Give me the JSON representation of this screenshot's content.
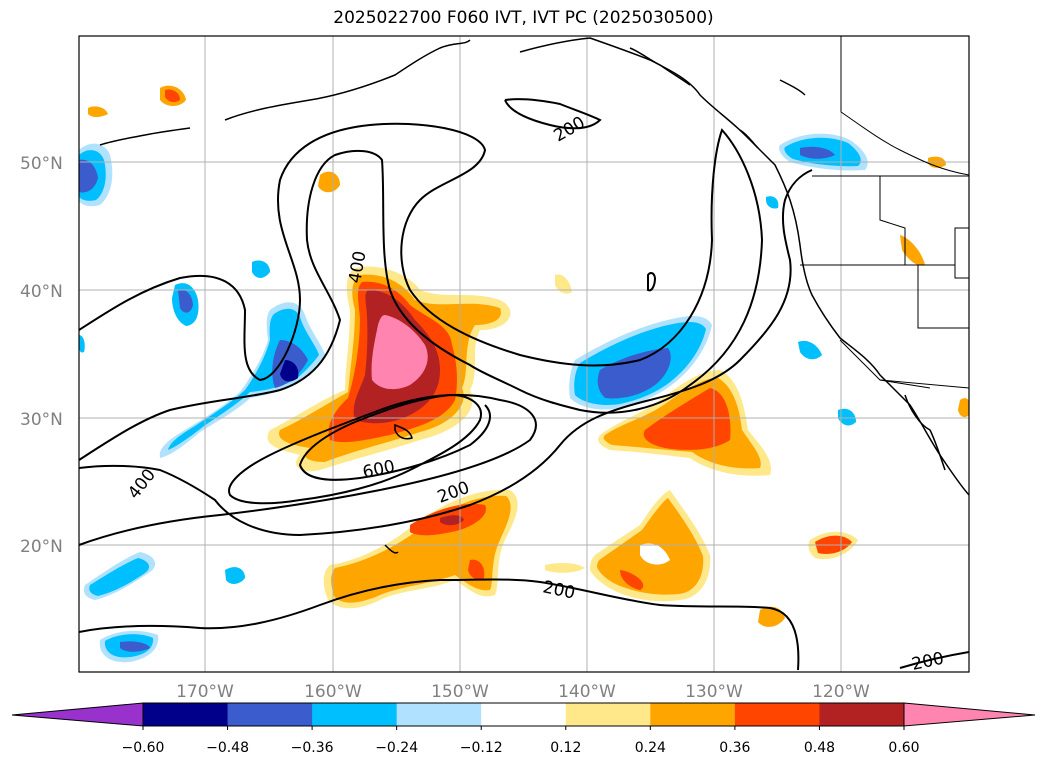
{
  "title": "2025022700 F060 IVT, IVT PC (2025030500)",
  "map": {
    "lat_labels": [
      "50°N",
      "40°N",
      "30°N",
      "20°N"
    ],
    "lon_labels": [
      "170°W",
      "160°W",
      "150°W",
      "140°W",
      "130°W",
      "120°W"
    ],
    "contour_labels": [
      "400",
      "200",
      "400",
      "600",
      "200",
      "200",
      "200"
    ]
  },
  "colorbar": {
    "ticks": [
      "−0.60",
      "−0.48",
      "−0.36",
      "−0.24",
      "−0.12",
      "0.12",
      "0.24",
      "0.36",
      "0.48",
      "0.60"
    ],
    "colors": [
      "#9932cc",
      "#00008b",
      "#3a5ccc",
      "#00bfff",
      "#b0e2ff",
      "#ffffff",
      "#ffe88a",
      "#ffa500",
      "#ff4500",
      "#b22222",
      "#ff85b0"
    ]
  }
}
